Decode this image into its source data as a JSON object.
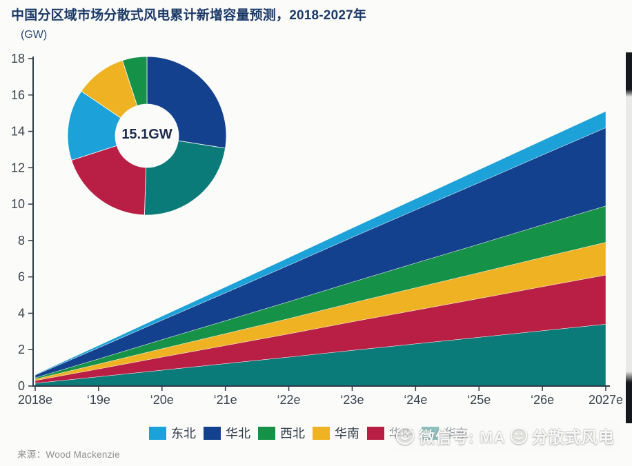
{
  "header": {
    "title": "中国分区域市场分散式风电累计新增容量预测，2018-2027年",
    "unit": "(GW)"
  },
  "colors": {
    "northeast": "#1ca2d8",
    "north": "#14418e",
    "northwest": "#169148",
    "south": "#efb222",
    "central": "#b91f45",
    "east": "#0a7b78"
  },
  "chart_data": [
    {
      "type": "area",
      "stacked": true,
      "title": "中国分区域市场分散式风电累计新增容量预测，2018-2027年",
      "ylabel": "(GW)",
      "x": [
        "2018e",
        "‘19e",
        "‘20e",
        "‘21e",
        "‘22e",
        "‘23e",
        "‘24e",
        "‘25e",
        "‘26e",
        "2027e"
      ],
      "ylim": [
        0,
        18
      ],
      "ytick_step": 2,
      "grid": false,
      "legend_position": "bottom",
      "series": [
        {
          "name": "华东",
          "color": "#0a7b78",
          "values": [
            0.15,
            0.51,
            0.87,
            1.23,
            1.59,
            1.96,
            2.32,
            2.68,
            3.04,
            3.4
          ]
        },
        {
          "name": "华中",
          "color": "#b91f45",
          "values": [
            0.15,
            0.43,
            0.72,
            1.0,
            1.28,
            1.57,
            1.85,
            2.13,
            2.42,
            2.7
          ]
        },
        {
          "name": "华南",
          "color": "#efb222",
          "values": [
            0.08,
            0.27,
            0.46,
            0.65,
            0.84,
            1.04,
            1.23,
            1.42,
            1.61,
            1.8
          ]
        },
        {
          "name": "西北",
          "color": "#169148",
          "values": [
            0.07,
            0.28,
            0.5,
            0.71,
            0.93,
            1.14,
            1.36,
            1.57,
            1.79,
            2.0
          ]
        },
        {
          "name": "华北",
          "color": "#14418e",
          "values": [
            0.15,
            0.61,
            1.07,
            1.53,
            2.0,
            2.46,
            2.92,
            3.38,
            3.84,
            4.3
          ]
        },
        {
          "name": "东北",
          "color": "#1ca2d8",
          "values": [
            0.03,
            0.13,
            0.22,
            0.32,
            0.42,
            0.51,
            0.61,
            0.71,
            0.8,
            0.9
          ]
        }
      ]
    },
    {
      "type": "pie",
      "subtype": "donut",
      "center_label": "15.1GW",
      "start": "top-clockwise",
      "segments": [
        {
          "name": "华北",
          "color": "#14418e",
          "pct": 27.5
        },
        {
          "name": "华东",
          "color": "#0a7b78",
          "pct": 23.0
        },
        {
          "name": "华中",
          "color": "#b91f45",
          "pct": 19.5
        },
        {
          "name": "东北",
          "color": "#1ca2d8",
          "pct": 14.5
        },
        {
          "name": "华南",
          "color": "#efb222",
          "pct": 10.5
        },
        {
          "name": "西北",
          "color": "#169148",
          "pct": 5.0
        }
      ]
    }
  ],
  "donut": {
    "center_label": "15.1GW"
  },
  "legend": {
    "items": [
      {
        "label": "东北",
        "color": "#1ca2d8"
      },
      {
        "label": "华北",
        "color": "#14418e"
      },
      {
        "label": "西北",
        "color": "#169148"
      },
      {
        "label": "华南",
        "color": "#efb222"
      },
      {
        "label": "华中",
        "color": "#b91f45"
      },
      {
        "label": "华东",
        "color": "#0a7b78"
      }
    ]
  },
  "watermark": {
    "text1": "微信号: MA",
    "text2": "分散式风电"
  },
  "source": "来源：Wood Mackenzie"
}
